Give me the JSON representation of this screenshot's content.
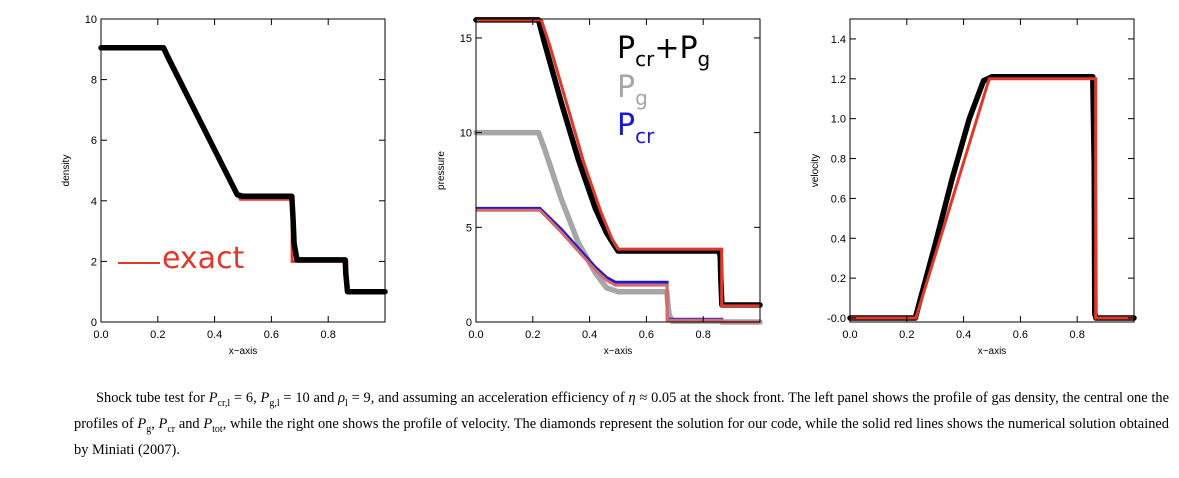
{
  "chart_data": [
    {
      "type": "line",
      "name": "density-panel",
      "xlabel": "x−axis",
      "ylabel": "density",
      "xlim": [
        0,
        1
      ],
      "ylim": [
        0,
        10
      ],
      "xticks": [
        0.0,
        0.2,
        0.4,
        0.6,
        0.8
      ],
      "xtick_labels": [
        "0.0",
        "0.2",
        "0.4",
        "0.6",
        "0.8"
      ],
      "yticks": [
        0,
        2,
        4,
        6,
        8,
        10
      ],
      "ytick_labels": [
        "0",
        "2",
        "4",
        "6",
        "8",
        "10"
      ],
      "legend": {
        "text": "exact",
        "color": "#e0392b",
        "placement": "bottom-left"
      },
      "series": [
        {
          "name": "exact",
          "style": "solid",
          "color": "#e0392b",
          "x": [
            0.0,
            0.225,
            0.49,
            0.673,
            0.673,
            0.865,
            0.865,
            1.0
          ],
          "y": [
            9.05,
            9.05,
            4.05,
            4.05,
            2.0,
            2.0,
            1.0,
            1.0
          ]
        },
        {
          "name": "code",
          "style": "diamonds",
          "color": "#000000",
          "x": [
            0.0,
            0.22,
            0.24,
            0.48,
            0.5,
            0.672,
            0.676,
            0.68,
            0.69,
            0.86,
            0.862,
            0.868,
            1.0
          ],
          "y": [
            9.05,
            9.05,
            8.65,
            4.2,
            4.15,
            4.15,
            3.45,
            2.6,
            2.05,
            2.05,
            1.6,
            1.0,
            1.0
          ]
        }
      ]
    },
    {
      "type": "line",
      "name": "pressure-panel",
      "xlabel": "x−axis",
      "ylabel": "pressure",
      "xlim": [
        0,
        1
      ],
      "ylim": [
        0,
        16
      ],
      "xticks": [
        0.0,
        0.2,
        0.4,
        0.6,
        0.8
      ],
      "xtick_labels": [
        "0.0",
        "0.2",
        "0.4",
        "0.6",
        "0.8"
      ],
      "yticks": [
        0,
        5,
        10,
        15
      ],
      "ytick_labels": [
        "0",
        "5",
        "10",
        "15"
      ],
      "legend": {
        "placement": "top-right",
        "entries": [
          {
            "main": "P",
            "sub": "cr",
            "main2": "+P",
            "sub2": "g",
            "color": "#000000"
          },
          {
            "main": "P",
            "sub": "g",
            "main2": "",
            "sub2": "",
            "color": "#a6a6a6"
          },
          {
            "main": "P",
            "sub": "cr",
            "main2": "",
            "sub2": "",
            "color": "#1a1ad6"
          }
        ]
      },
      "series": [
        {
          "name": "Pg",
          "style": "diamonds",
          "color": "#a6a6a6",
          "x": [
            0.0,
            0.22,
            0.24,
            0.3,
            0.36,
            0.42,
            0.46,
            0.5,
            0.672,
            0.676,
            0.68,
            0.69,
            0.86,
            0.862,
            0.866,
            1.0
          ],
          "y": [
            10.0,
            10.0,
            9.2,
            6.5,
            4.2,
            2.6,
            1.8,
            1.6,
            1.6,
            0.9,
            0.4,
            0.05,
            0.05,
            0.02,
            0.0,
            0.0
          ]
        },
        {
          "name": "Pcr-exact",
          "style": "solid",
          "color": "#1a1ad6",
          "x": [
            0.0,
            0.225,
            0.3,
            0.36,
            0.42,
            0.46,
            0.49,
            0.673,
            0.673,
            0.865,
            0.865,
            1.0
          ],
          "y": [
            6.0,
            6.0,
            4.9,
            3.9,
            2.9,
            2.35,
            2.1,
            2.1,
            0.15,
            0.15,
            0.0,
            0.0
          ]
        },
        {
          "name": "Pcr-code",
          "style": "solid",
          "color": "#d86a6a",
          "x": [
            0.0,
            0.225,
            0.3,
            0.36,
            0.42,
            0.46,
            0.49,
            0.673,
            0.673,
            0.865,
            0.865,
            1.0
          ],
          "y": [
            5.9,
            5.9,
            4.75,
            3.75,
            2.75,
            2.2,
            1.95,
            1.95,
            0.1,
            0.1,
            0.0,
            0.0
          ]
        },
        {
          "name": "Ptot-code",
          "style": "diamonds",
          "color": "#000000",
          "x": [
            0.0,
            0.22,
            0.24,
            0.3,
            0.36,
            0.42,
            0.46,
            0.5,
            0.855,
            0.86,
            0.862,
            0.866,
            1.0
          ],
          "y": [
            15.95,
            15.95,
            14.8,
            11.6,
            8.6,
            6.0,
            4.7,
            3.75,
            3.75,
            3.5,
            2.3,
            0.9,
            0.9
          ]
        },
        {
          "name": "Ptot-exact",
          "style": "solid",
          "color": "#e0392b",
          "x": [
            0.0,
            0.23,
            0.26,
            0.32,
            0.38,
            0.44,
            0.48,
            0.5,
            0.865,
            0.865,
            1.0
          ],
          "y": [
            15.95,
            15.95,
            14.6,
            11.5,
            8.4,
            5.8,
            4.35,
            3.85,
            3.85,
            0.85,
            0.85
          ]
        }
      ]
    },
    {
      "type": "line",
      "name": "velocity-panel",
      "xlabel": "x−axis",
      "ylabel": "velocity",
      "xlim": [
        0,
        1
      ],
      "ylim": [
        -0.02,
        1.5
      ],
      "xticks": [
        0.0,
        0.2,
        0.4,
        0.6,
        0.8
      ],
      "xtick_labels": [
        "0.0",
        "0.2",
        "0.4",
        "0.6",
        "0.8"
      ],
      "yticks": [
        -0.0,
        0.2,
        0.4,
        0.6,
        0.8,
        1.0,
        1.2,
        1.4
      ],
      "ytick_labels": [
        "-0.0",
        "0.2",
        "0.4",
        "0.6",
        "0.8",
        "1.0",
        "1.2",
        "1.4"
      ],
      "series": [
        {
          "name": "code",
          "style": "diamonds",
          "color": "#000000",
          "x": [
            0.0,
            0.23,
            0.3,
            0.36,
            0.42,
            0.47,
            0.5,
            0.855,
            0.86,
            0.862,
            0.866,
            1.0
          ],
          "y": [
            0.0,
            0.0,
            0.37,
            0.7,
            1.0,
            1.19,
            1.21,
            1.21,
            0.77,
            0.02,
            0.0,
            0.0
          ]
        },
        {
          "name": "exact",
          "style": "solid",
          "color": "#e0392b",
          "x": [
            0.0,
            0.232,
            0.49,
            0.865,
            0.865,
            1.0
          ],
          "y": [
            0.0,
            0.0,
            1.2,
            1.2,
            0.0,
            0.0
          ]
        }
      ]
    }
  ],
  "caption": {
    "text_part1": "Shock tube test for ",
    "sym_P": "P",
    "sub_crl": "cr,l",
    "eq6": " = 6, ",
    "sub_gl": "g,l",
    "eq10": " = 10 and ",
    "sym_rho": "ρ",
    "sub_l": "l",
    "eq9": " = 9, and assuming an acceleration efficiency of ",
    "sym_eta": "η",
    "approx": " ≈ 0.05 at the shock front. The left panel shows the profile of gas density, the central one the profiles of ",
    "sub_g": "g",
    "comma": ", ",
    "sub_cr": "cr",
    "and": " and ",
    "sub_tot": "tot",
    "text_part2": ", while the right one shows the profile of velocity. The diamonds represent the solution for our code, while the solid red lines shows the numerical solution obtained by Miniati (2007)."
  }
}
